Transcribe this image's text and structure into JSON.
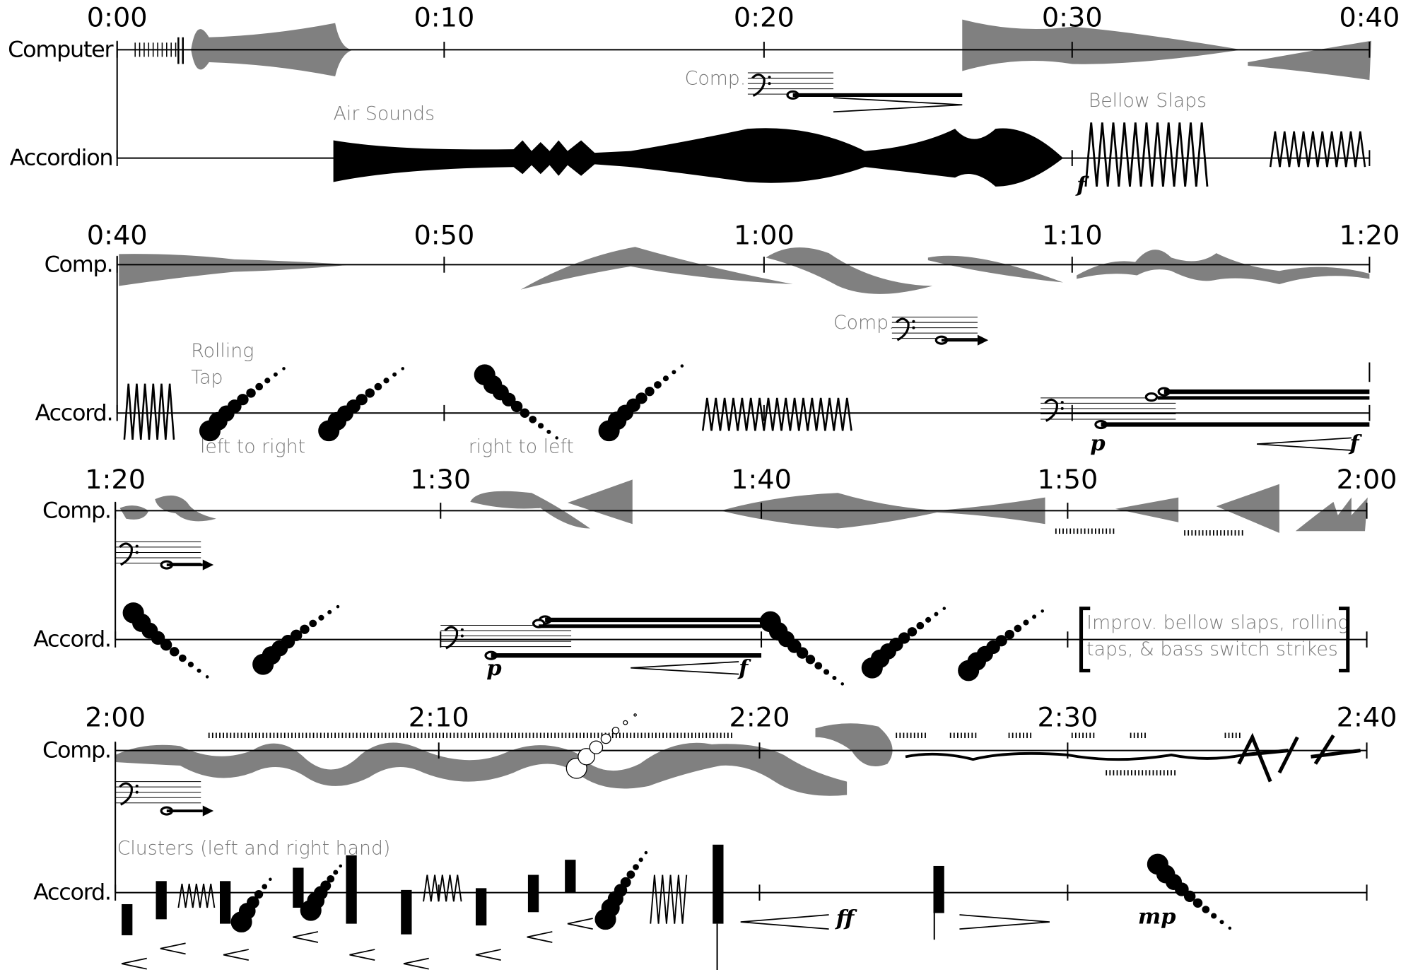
{
  "systems": [
    {
      "times": [
        "0:00",
        "0:10",
        "0:20",
        "0:30",
        "0:40"
      ],
      "labels": [
        "Computer",
        "Accordion"
      ],
      "annotations": [
        "Comp.",
        "Air Sounds",
        "Bellow Slaps"
      ],
      "dynamics": [
        "f"
      ]
    },
    {
      "times": [
        "0:40",
        "0:50",
        "1:00",
        "1:10",
        "1:20"
      ],
      "labels": [
        "Comp.",
        "Accord."
      ],
      "annotations": [
        "Comp.",
        "Rolling",
        "Tap",
        "left to right",
        "right to left"
      ],
      "dynamics": [
        "p",
        "f"
      ]
    },
    {
      "times": [
        "1:20",
        "1:30",
        "1:40",
        "1:50",
        "2:00"
      ],
      "labels": [
        "Comp.",
        "Accord."
      ],
      "annotations": [
        "Improv. bellow slaps, rolling",
        "taps, & bass switch strikes"
      ],
      "dynamics": [
        "p",
        "f"
      ]
    },
    {
      "times": [
        "2:00",
        "2:10",
        "2:20",
        "2:30",
        "2:40"
      ],
      "labels": [
        "Comp.",
        "Accord."
      ],
      "annotations": [
        "Clusters (left and right hand)"
      ],
      "dynamics": [
        "ff",
        "mp"
      ]
    }
  ]
}
